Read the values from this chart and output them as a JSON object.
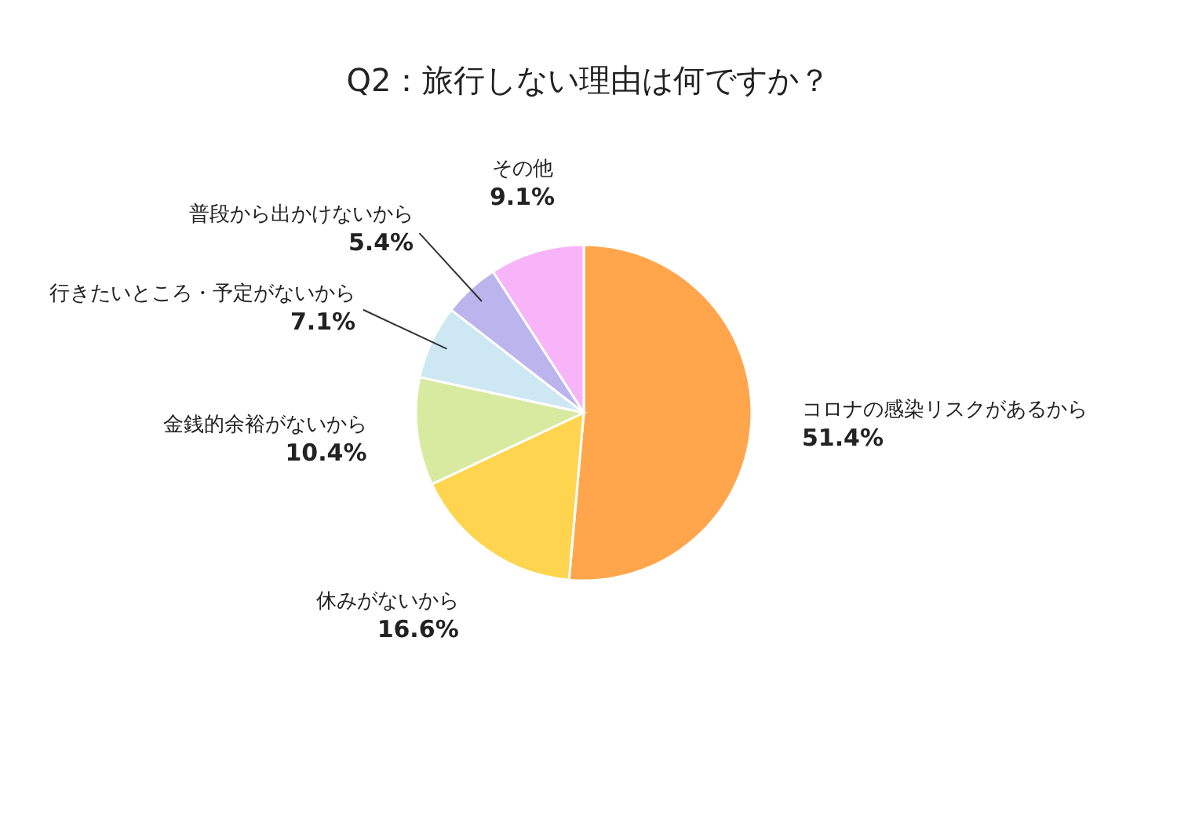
{
  "chart_data": {
    "type": "pie",
    "title": "Q2：旅行しない理由は何ですか？",
    "categories": [
      "コロナの感染リスクがあるから",
      "休みがないから",
      "金銭的余裕がないから",
      "行きたいところ・予定がないから",
      "普段から出かけないから",
      "その他"
    ],
    "values": [
      51.4,
      16.6,
      10.4,
      7.1,
      5.4,
      9.1
    ],
    "colors": [
      "#ffa64d",
      "#ffd54f",
      "#d7eaa0",
      "#cde8f2",
      "#bcb4ec",
      "#f8b4f8"
    ],
    "value_labels": [
      "51.4%",
      "16.6%",
      "10.4%",
      "7.1%",
      "5.4%",
      "9.1%"
    ]
  }
}
